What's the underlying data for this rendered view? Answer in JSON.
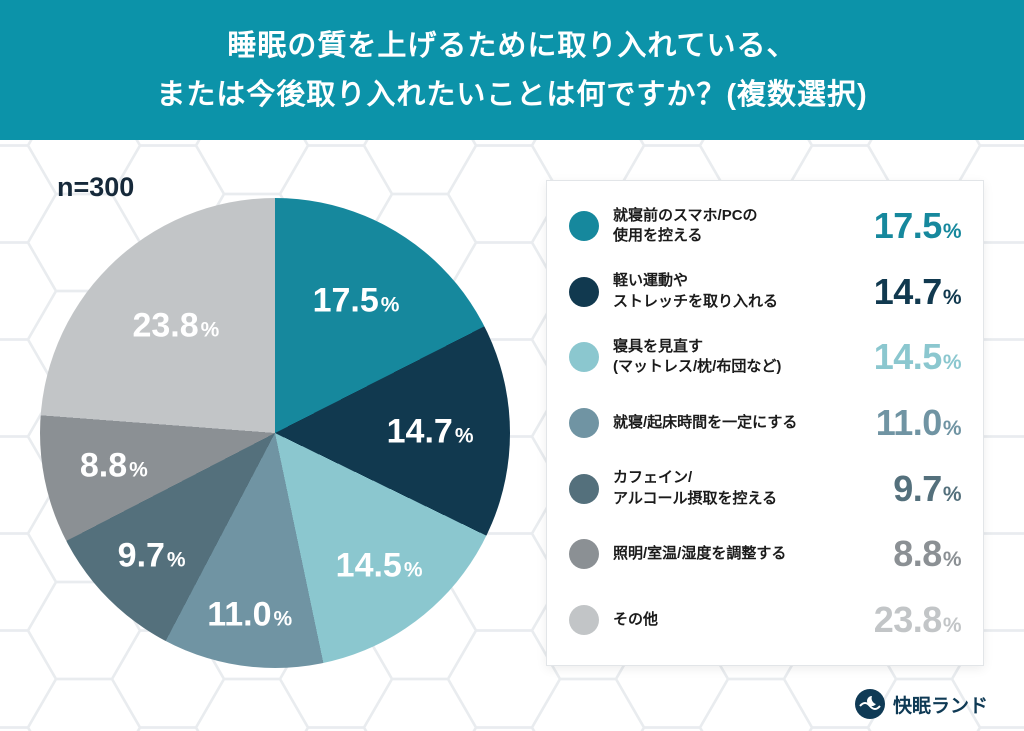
{
  "header": {
    "title_line1": "睡眠の質を上げるために取り入れている、",
    "title_line2": "または今後取り入れたいことは何ですか？(複数選択)"
  },
  "chart_info": {
    "sample_label": "n=300"
  },
  "footer": {
    "brand": "快眠ランド"
  },
  "colors": {
    "header_bg": "#0C93A9",
    "text_dark": "#16293A",
    "brand_navy": "#0F3A55"
  },
  "chart_data": {
    "type": "pie",
    "title": "睡眠の質を上げるために取り入れている、または今後取り入れたいことは何ですか？(複数選択)",
    "sample_size": 300,
    "start_angle_deg": 0,
    "direction": "clockwise",
    "legend_position": "right",
    "slices": [
      {
        "label": "就寝前のスマホ/PCの使用を控える",
        "legend_lines": [
          "就寝前のスマホ/PCの",
          "使用を控える"
        ],
        "value": 17.5,
        "color": "#16889D",
        "label_r": 0.66
      },
      {
        "label": "軽い運動やストレッチを取り入れる",
        "legend_lines": [
          "軽い運動や",
          "ストレッチを取り入れる"
        ],
        "value": 14.7,
        "color": "#11394F",
        "label_r": 0.66
      },
      {
        "label": "寝具を見直す(マットレス/枕/布団など)",
        "legend_lines": [
          "寝具を見直す",
          "(マットレス/枕/布団など)"
        ],
        "value": 14.5,
        "color": "#8BC7CF",
        "label_r": 0.72
      },
      {
        "label": "就寝/起床時間を一定にする",
        "legend_lines": [
          "就寝/起床時間を一定にする"
        ],
        "value": 11.0,
        "color": "#7094A3",
        "label_r": 0.78
      },
      {
        "label": "カフェイン/アルコール摂取を控える",
        "legend_lines": [
          "カフェイン/",
          "アルコール摂取を控える"
        ],
        "value": 9.7,
        "color": "#54707C",
        "label_r": 0.74
      },
      {
        "label": "照明/室温/湿度を調整する",
        "legend_lines": [
          "照明/室温/湿度を調整する"
        ],
        "value": 8.8,
        "color": "#8B9094",
        "label_r": 0.7
      },
      {
        "label": "その他",
        "legend_lines": [
          "その他"
        ],
        "value": 23.8,
        "color": "#C2C5C7",
        "label_r": 0.62
      }
    ]
  }
}
